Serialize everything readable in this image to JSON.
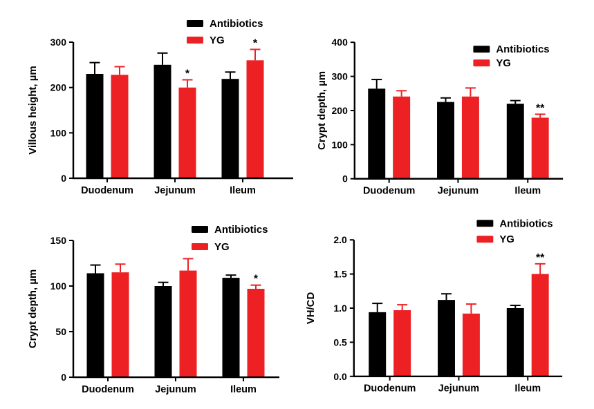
{
  "figure": {
    "background_color": "#ffffff",
    "description": "Four-panel grouped bar chart figure comparing Antibiotics vs YG groups across intestinal segments"
  },
  "colors": {
    "antibiotics": "#000000",
    "yg": "#ED2024",
    "axis": "#000000",
    "text": "#000000",
    "significance": "#000000"
  },
  "legend": {
    "entries": [
      "Antibiotics",
      "YG"
    ]
  },
  "chart_data": [
    {
      "id": "villous-height",
      "type": "bar",
      "title": "",
      "xlabel": "",
      "ylabel": "Villous height, µm",
      "ylim": [
        0,
        300
      ],
      "yticks": [
        0,
        100,
        200,
        300
      ],
      "ytick_labels": [
        "0",
        "100",
        "200",
        "300"
      ],
      "categories": [
        "Duodenum",
        "Jejunum",
        "Ileum"
      ],
      "grid": false,
      "error_bars": "upper",
      "legend_position": "inside-top-right",
      "series": [
        {
          "name": "Antibiotics",
          "color": "#000000",
          "values": [
            230,
            250,
            219
          ],
          "errors": [
            25,
            26,
            15
          ],
          "sig": [
            "",
            "",
            ""
          ]
        },
        {
          "name": "YG",
          "color": "#ED2024",
          "values": [
            228,
            200,
            260
          ],
          "errors": [
            18,
            17,
            24
          ],
          "sig": [
            "",
            "*",
            "*"
          ]
        }
      ]
    },
    {
      "id": "crypt-depth-upper",
      "type": "bar",
      "title": "",
      "xlabel": "",
      "ylabel": "Crypt depth, µm",
      "ylim": [
        0,
        400
      ],
      "yticks": [
        0,
        100,
        200,
        300,
        400
      ],
      "ytick_labels": [
        "0",
        "100",
        "200",
        "300",
        "400"
      ],
      "categories": [
        "Duodenum",
        "Jejunum",
        "Ileum"
      ],
      "grid": false,
      "error_bars": "upper",
      "legend_position": "inside-top-right",
      "series": [
        {
          "name": "Antibiotics",
          "color": "#000000",
          "values": [
            264,
            225,
            220
          ],
          "errors": [
            27,
            12,
            9
          ],
          "sig": [
            "",
            "",
            ""
          ]
        },
        {
          "name": "YG",
          "color": "#ED2024",
          "values": [
            241,
            241,
            179
          ],
          "errors": [
            17,
            25,
            10
          ],
          "sig": [
            "",
            "",
            "**"
          ]
        }
      ]
    },
    {
      "id": "crypt-depth-lower",
      "type": "bar",
      "title": "",
      "xlabel": "",
      "ylabel": "Crypt depth, µm",
      "ylim": [
        0,
        150
      ],
      "yticks": [
        0,
        50,
        100,
        150
      ],
      "ytick_labels": [
        "0",
        "50",
        "100",
        "150"
      ],
      "categories": [
        "Duodenum",
        "Jejunum",
        "Ileum"
      ],
      "grid": false,
      "error_bars": "upper",
      "legend_position": "inside-top-right",
      "series": [
        {
          "name": "Antibiotics",
          "color": "#000000",
          "values": [
            114,
            100,
            109
          ],
          "errors": [
            9,
            4,
            3
          ],
          "sig": [
            "",
            "",
            ""
          ]
        },
        {
          "name": "YG",
          "color": "#ED2024",
          "values": [
            115,
            117,
            97
          ],
          "errors": [
            9,
            13,
            4
          ],
          "sig": [
            "",
            "",
            "*"
          ]
        }
      ]
    },
    {
      "id": "vh-cd-ratio",
      "type": "bar",
      "title": "",
      "xlabel": "",
      "ylabel": "VH/CD",
      "ylim": [
        0,
        2.0
      ],
      "yticks": [
        0,
        0.5,
        1.0,
        1.5,
        2.0
      ],
      "ytick_labels": [
        "0.0",
        "0.5",
        "1.0",
        "1.5",
        "2.0"
      ],
      "categories": [
        "Duodenum",
        "Jejunum",
        "Ileum"
      ],
      "grid": false,
      "error_bars": "upper",
      "legend_position": "inside-top-right",
      "series": [
        {
          "name": "Antibiotics",
          "color": "#000000",
          "values": [
            0.94,
            1.12,
            1.0
          ],
          "errors": [
            0.13,
            0.09,
            0.04
          ],
          "sig": [
            "",
            "",
            ""
          ]
        },
        {
          "name": "YG",
          "color": "#ED2024",
          "values": [
            0.97,
            0.92,
            1.5
          ],
          "errors": [
            0.08,
            0.14,
            0.15
          ],
          "sig": [
            "",
            "",
            "**"
          ]
        }
      ]
    }
  ]
}
